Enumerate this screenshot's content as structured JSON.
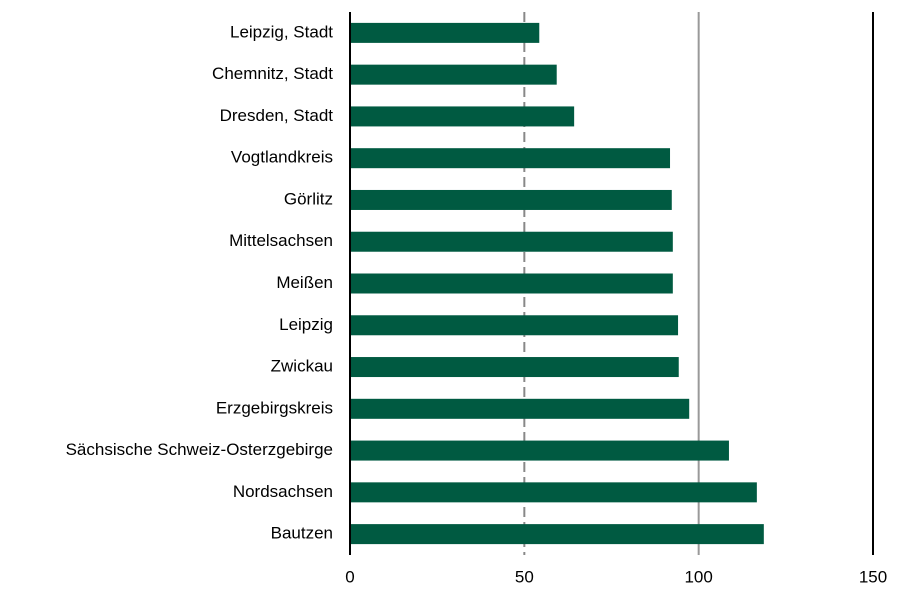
{
  "chart_data": {
    "type": "hbar",
    "categories": [
      "Leipzig, Stadt",
      "Chemnitz, Stadt",
      "Dresden, Stadt",
      "Vogtlandkreis",
      "Görlitz",
      "Mittelsachsen",
      "Meißen",
      "Leipzig",
      "Zwickau",
      "Erzgebirgskreis",
      "Sächsische Schweiz-Osterzgebirge",
      "Nordsachsen",
      "Bautzen"
    ],
    "values": [
      54,
      59,
      64,
      91.5,
      92,
      92.3,
      92.3,
      93.8,
      94,
      97,
      108.4,
      116.4,
      118.4
    ],
    "color": "#005a41",
    "xlim": [
      0,
      150
    ],
    "xticks": [
      0,
      50,
      100,
      150
    ],
    "grid": true
  }
}
